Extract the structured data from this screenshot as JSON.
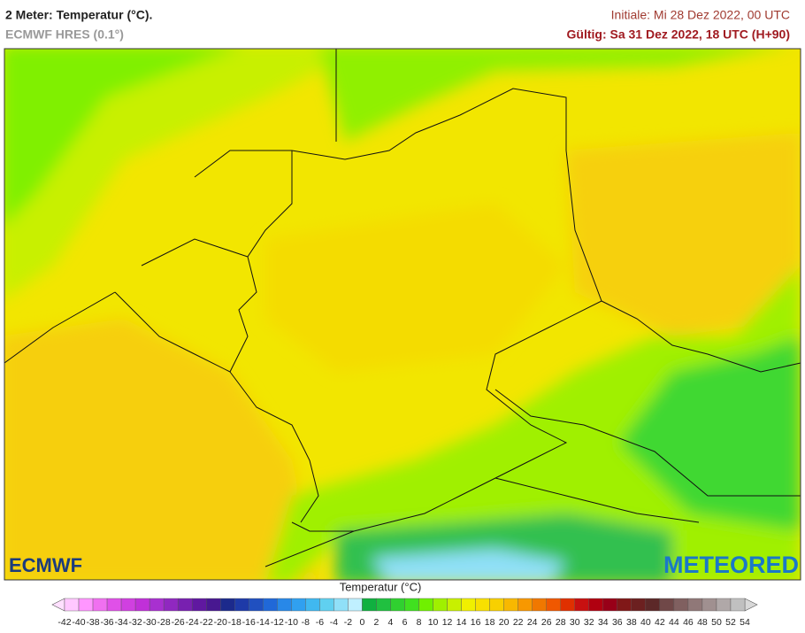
{
  "header": {
    "title": "2 Meter: Temperatur (°C).",
    "model": "ECMWF HRES (0.1°)",
    "init": "Initiale: Mi 28 Dez 2022, 00 UTC",
    "valid": "Gültig: Sa 31 Dez 2022, 18 UTC (H+90)"
  },
  "map": {
    "logos": [
      "ECMWF",
      "METEORED"
    ]
  },
  "legend": {
    "title": "Temperatur (°C)",
    "ticks": [
      -42,
      -40,
      -38,
      -36,
      -34,
      -32,
      -30,
      -28,
      -26,
      -24,
      -22,
      -20,
      -18,
      -16,
      -14,
      -12,
      -10,
      -8,
      -6,
      -4,
      -2,
      0,
      2,
      4,
      6,
      8,
      10,
      12,
      14,
      16,
      18,
      20,
      22,
      24,
      26,
      28,
      30,
      32,
      34,
      36,
      38,
      40,
      42,
      44,
      46,
      48,
      50,
      52,
      54
    ],
    "colors": [
      "#ffc8ff",
      "#ff96ff",
      "#f070f0",
      "#e050e8",
      "#d040e0",
      "#c030d8",
      "#a830d0",
      "#9028c0",
      "#7820b0",
      "#6018a0",
      "#481890",
      "#1c2a8c",
      "#1e3aa8",
      "#2050c0",
      "#2068d8",
      "#2888e8",
      "#30a0f0",
      "#40b8f0",
      "#60d0f0",
      "#90e0f8",
      "#c0f0ff",
      "#10b040",
      "#20c040",
      "#30d030",
      "#40e020",
      "#70f000",
      "#a0f000",
      "#c8f000",
      "#f0f000",
      "#f8e000",
      "#f8d000",
      "#f8b800",
      "#f89800",
      "#f07800",
      "#f05800",
      "#e03000",
      "#c81010",
      "#b00010",
      "#980018",
      "#801818",
      "#6c2020",
      "#5c2828",
      "#704848",
      "#806060",
      "#907878",
      "#a09090",
      "#b0a8a8",
      "#c0c0c0"
    ],
    "under_color": "#ffe0ff",
    "over_color": "#d8d8d8"
  }
}
